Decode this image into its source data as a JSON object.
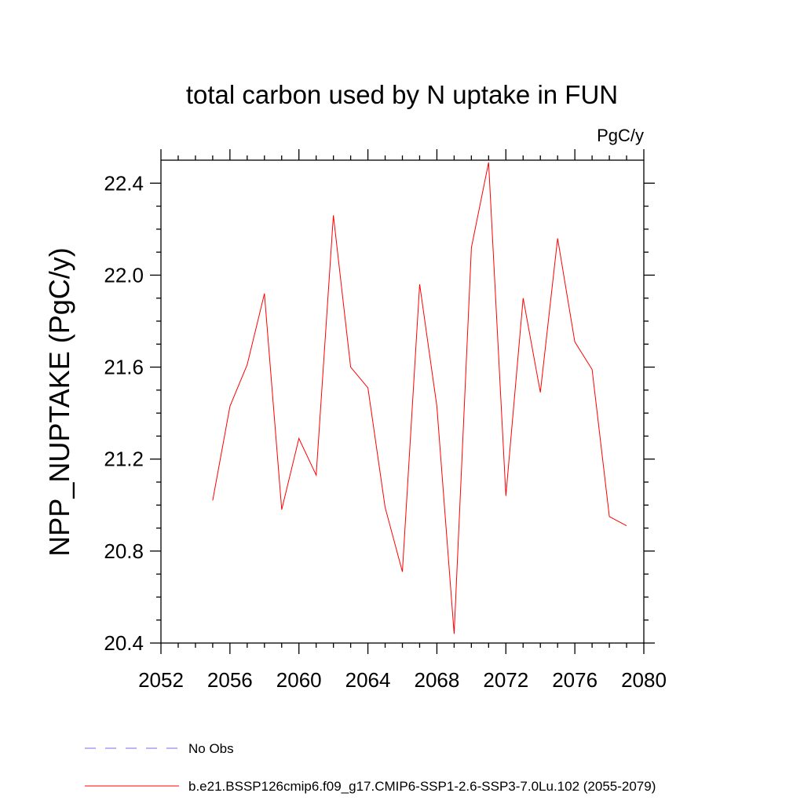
{
  "chart_data": {
    "type": "line",
    "title": "total carbon used by N uptake in FUN",
    "units_label": "PgC/y",
    "ylabel": "NPP_NUPTAKE  (PgC/y)",
    "xlabel": "",
    "xlim": [
      2052,
      2080
    ],
    "ylim": [
      20.4,
      22.5
    ],
    "x_ticks": [
      2052,
      2056,
      2060,
      2064,
      2068,
      2072,
      2076,
      2080
    ],
    "y_ticks": [
      20.4,
      20.8,
      21.2,
      21.6,
      22.0,
      22.4
    ],
    "x_tick_labels": [
      "2052",
      "2056",
      "2060",
      "2064",
      "2068",
      "2072",
      "2076",
      "2080"
    ],
    "y_tick_labels": [
      "20.4",
      "20.8",
      "21.2",
      "21.6",
      "22.0",
      "22.4"
    ],
    "grid": false,
    "legend_position": "bottom",
    "series": [
      {
        "name": "b.e21.BSSP126cmip6.f09_g17.CMIP6-SSP1-2.6-SSP3-7.0Lu.102 (2055-2079)",
        "color": "#ff0000",
        "x": [
          2055,
          2056,
          2057,
          2058,
          2059,
          2060,
          2061,
          2062,
          2063,
          2064,
          2065,
          2066,
          2067,
          2068,
          2069,
          2070,
          2071,
          2072,
          2073,
          2074,
          2075,
          2076,
          2077,
          2078,
          2079
        ],
        "y": [
          21.02,
          21.43,
          21.61,
          21.92,
          20.98,
          21.29,
          21.13,
          22.26,
          21.6,
          21.51,
          20.99,
          20.71,
          21.96,
          21.43,
          20.44,
          22.12,
          22.49,
          21.04,
          21.9,
          21.49,
          22.16,
          21.71,
          21.59,
          20.95,
          20.91
        ]
      }
    ],
    "legend": [
      {
        "label": "No Obs",
        "color": "#7b68ee",
        "dash": true
      },
      {
        "label": "b.e21.BSSP126cmip6.f09_g17.CMIP6-SSP1-2.6-SSP3-7.0Lu.102 (2055-2079)",
        "color": "#ff0000",
        "dash": false
      }
    ]
  }
}
